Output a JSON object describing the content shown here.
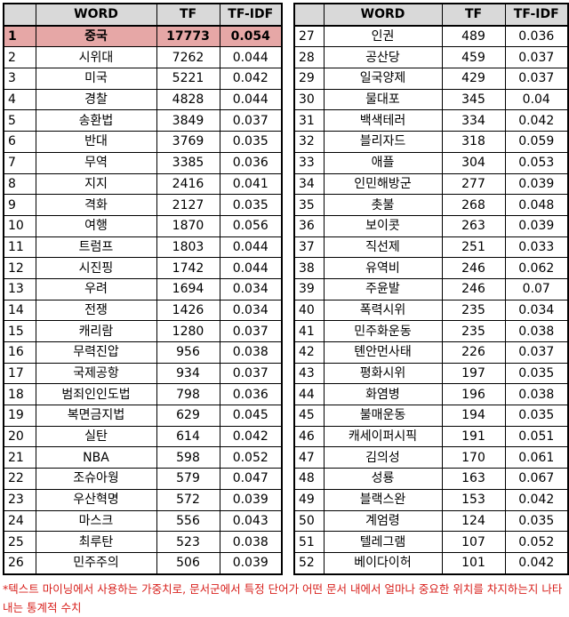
{
  "headers": {
    "rank": "",
    "word": "WORD",
    "tf": "TF",
    "tfidf": "TF-IDF"
  },
  "rows": [
    {
      "rank": "1",
      "word": "중국",
      "tf": "17773",
      "tfidf": "0.054"
    },
    {
      "rank": "2",
      "word": "시위대",
      "tf": "7262",
      "tfidf": "0.044"
    },
    {
      "rank": "3",
      "word": "미국",
      "tf": "5221",
      "tfidf": "0.042"
    },
    {
      "rank": "4",
      "word": "경찰",
      "tf": "4828",
      "tfidf": "0.044"
    },
    {
      "rank": "5",
      "word": "송환법",
      "tf": "3849",
      "tfidf": "0.037"
    },
    {
      "rank": "6",
      "word": "반대",
      "tf": "3769",
      "tfidf": "0.035"
    },
    {
      "rank": "7",
      "word": "무역",
      "tf": "3385",
      "tfidf": "0.036"
    },
    {
      "rank": "8",
      "word": "지지",
      "tf": "2416",
      "tfidf": "0.041"
    },
    {
      "rank": "9",
      "word": "격화",
      "tf": "2127",
      "tfidf": "0.035"
    },
    {
      "rank": "10",
      "word": "여행",
      "tf": "1870",
      "tfidf": "0.056"
    },
    {
      "rank": "11",
      "word": "트럼프",
      "tf": "1803",
      "tfidf": "0.044"
    },
    {
      "rank": "12",
      "word": "시진핑",
      "tf": "1742",
      "tfidf": "0.044"
    },
    {
      "rank": "13",
      "word": "우려",
      "tf": "1694",
      "tfidf": "0.034"
    },
    {
      "rank": "14",
      "word": "전쟁",
      "tf": "1426",
      "tfidf": "0.034"
    },
    {
      "rank": "15",
      "word": "캐리람",
      "tf": "1280",
      "tfidf": "0.037"
    },
    {
      "rank": "16",
      "word": "무력진압",
      "tf": "956",
      "tfidf": "0.038"
    },
    {
      "rank": "17",
      "word": "국제공항",
      "tf": "934",
      "tfidf": "0.037"
    },
    {
      "rank": "18",
      "word": "범죄인인도법",
      "tf": "798",
      "tfidf": "0.036"
    },
    {
      "rank": "19",
      "word": "복면금지법",
      "tf": "629",
      "tfidf": "0.045"
    },
    {
      "rank": "20",
      "word": "실탄",
      "tf": "614",
      "tfidf": "0.042"
    },
    {
      "rank": "21",
      "word": "NBA",
      "tf": "598",
      "tfidf": "0.052"
    },
    {
      "rank": "22",
      "word": "조슈아웡",
      "tf": "579",
      "tfidf": "0.047"
    },
    {
      "rank": "23",
      "word": "우산혁명",
      "tf": "572",
      "tfidf": "0.039"
    },
    {
      "rank": "24",
      "word": "마스크",
      "tf": "556",
      "tfidf": "0.043"
    },
    {
      "rank": "25",
      "word": "최루탄",
      "tf": "523",
      "tfidf": "0.038"
    },
    {
      "rank": "26",
      "word": "민주주의",
      "tf": "506",
      "tfidf": "0.039"
    },
    {
      "rank": "27",
      "word": "인권",
      "tf": "489",
      "tfidf": "0.036"
    },
    {
      "rank": "28",
      "word": "공산당",
      "tf": "459",
      "tfidf": "0.037"
    },
    {
      "rank": "29",
      "word": "일국양제",
      "tf": "429",
      "tfidf": "0.037"
    },
    {
      "rank": "30",
      "word": "물대포",
      "tf": "345",
      "tfidf": "0.04"
    },
    {
      "rank": "31",
      "word": "백색테러",
      "tf": "334",
      "tfidf": "0.042"
    },
    {
      "rank": "32",
      "word": "블리자드",
      "tf": "318",
      "tfidf": "0.059"
    },
    {
      "rank": "33",
      "word": "애플",
      "tf": "304",
      "tfidf": "0.053"
    },
    {
      "rank": "34",
      "word": "인민해방군",
      "tf": "277",
      "tfidf": "0.039"
    },
    {
      "rank": "35",
      "word": "촛불",
      "tf": "268",
      "tfidf": "0.048"
    },
    {
      "rank": "36",
      "word": "보이콧",
      "tf": "263",
      "tfidf": "0.039"
    },
    {
      "rank": "37",
      "word": "직선제",
      "tf": "251",
      "tfidf": "0.033"
    },
    {
      "rank": "38",
      "word": "유역비",
      "tf": "246",
      "tfidf": "0.062"
    },
    {
      "rank": "39",
      "word": "주윤발",
      "tf": "246",
      "tfidf": "0.07"
    },
    {
      "rank": "40",
      "word": "폭력시위",
      "tf": "235",
      "tfidf": "0.034"
    },
    {
      "rank": "41",
      "word": "민주화운동",
      "tf": "235",
      "tfidf": "0.038"
    },
    {
      "rank": "42",
      "word": "톈안먼사태",
      "tf": "226",
      "tfidf": "0.037"
    },
    {
      "rank": "43",
      "word": "평화시위",
      "tf": "197",
      "tfidf": "0.035"
    },
    {
      "rank": "44",
      "word": "화염병",
      "tf": "196",
      "tfidf": "0.038"
    },
    {
      "rank": "45",
      "word": "불매운동",
      "tf": "194",
      "tfidf": "0.035"
    },
    {
      "rank": "46",
      "word": "캐세이퍼시픽",
      "tf": "191",
      "tfidf": "0.051"
    },
    {
      "rank": "47",
      "word": "김의성",
      "tf": "170",
      "tfidf": "0.061"
    },
    {
      "rank": "48",
      "word": "성룡",
      "tf": "163",
      "tfidf": "0.067"
    },
    {
      "rank": "49",
      "word": "블랙스완",
      "tf": "153",
      "tfidf": "0.042"
    },
    {
      "rank": "50",
      "word": "계엄령",
      "tf": "124",
      "tfidf": "0.035"
    },
    {
      "rank": "51",
      "word": "텔레그램",
      "tf": "107",
      "tfidf": "0.052"
    },
    {
      "rank": "52",
      "word": "베이다이허",
      "tf": "101",
      "tfidf": "0.042"
    }
  ],
  "highlight_color": "#e6a7a6",
  "footnote": "*텍스트 마이닝에서 사용하는 가중치로, 문서군에서 특정 단어가 어떤 문서 내에서 얼마나 중요한 위치를 차지하는지 나타내는 통계적 수치",
  "footnote_color": "#d8201c"
}
